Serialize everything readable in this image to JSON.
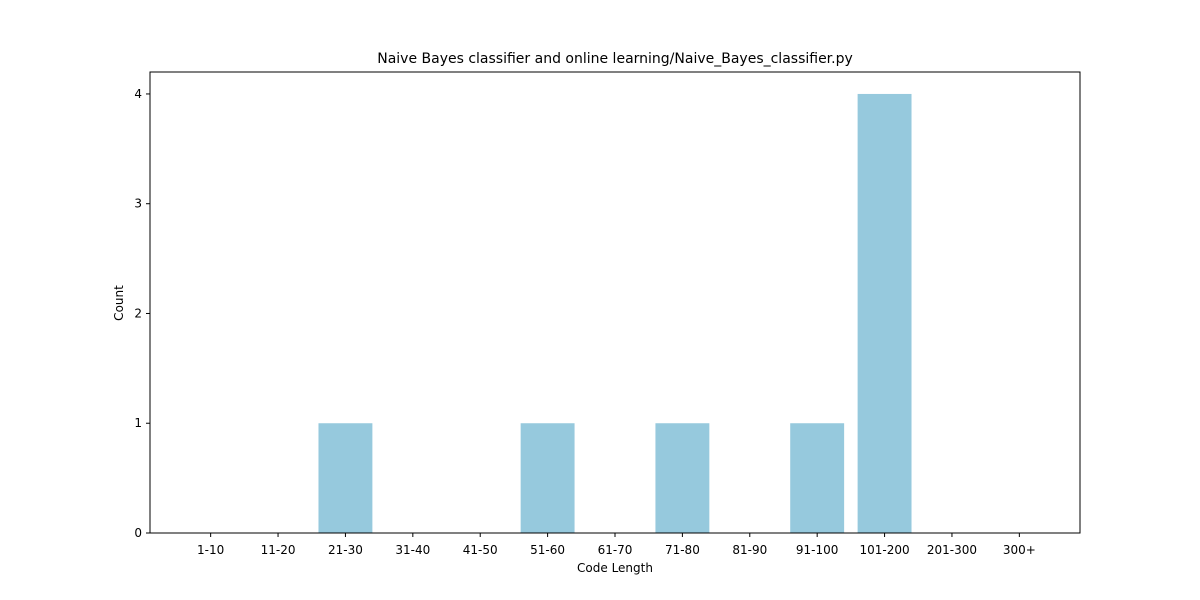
{
  "chart_data": {
    "type": "bar",
    "title": "Naive Bayes classifier and online learning/Naive_Bayes_classifier.py",
    "xlabel": "Code Length",
    "ylabel": "Count",
    "categories": [
      "1-10",
      "11-20",
      "21-30",
      "31-40",
      "41-50",
      "51-60",
      "61-70",
      "71-80",
      "81-90",
      "91-100",
      "101-200",
      "201-300",
      "300+"
    ],
    "values": [
      0,
      0,
      1,
      0,
      0,
      1,
      0,
      1,
      0,
      1,
      4,
      0,
      0
    ],
    "ylim": [
      0,
      4.2
    ],
    "yticks": [
      0,
      1,
      2,
      3,
      4
    ],
    "grid": false,
    "bar_color": "#96c9dd"
  }
}
